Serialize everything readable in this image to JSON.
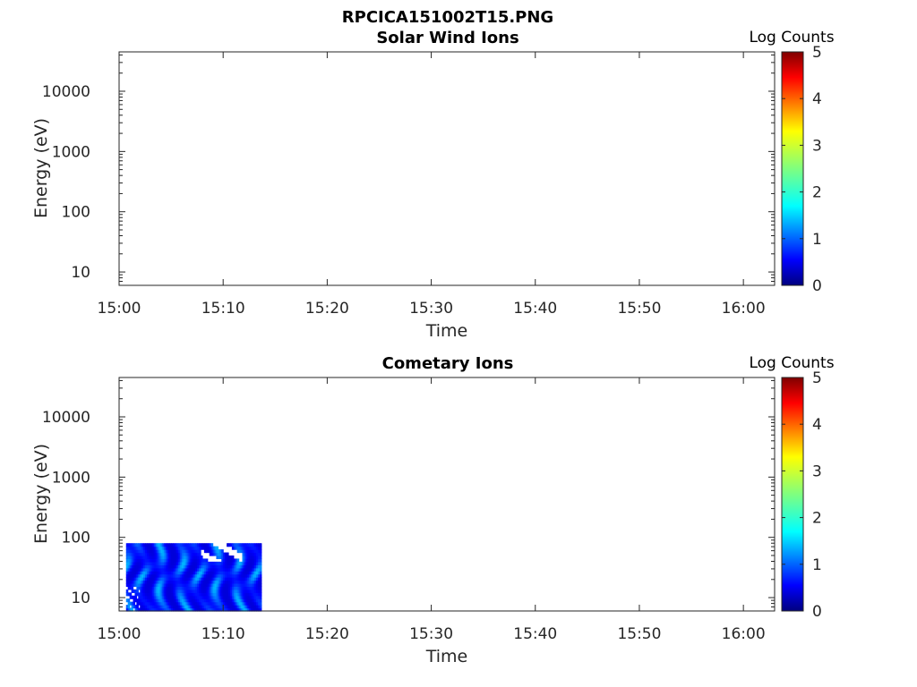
{
  "figure": {
    "title": "RPCICA151002T15.PNG"
  },
  "chart_data": [
    {
      "type": "heatmap",
      "title": "Solar Wind Ions",
      "xlabel": "Time",
      "ylabel": "Energy (eV)",
      "x_ticks": [
        "15:00",
        "15:10",
        "15:20",
        "15:30",
        "15:40",
        "15:50",
        "16:00"
      ],
      "y_ticks": [
        "10",
        "100",
        "1000",
        "10000"
      ],
      "y_scale": "log",
      "ylim": [
        6,
        45000
      ],
      "xlim": [
        "15:00",
        "16:03"
      ],
      "colorbar": {
        "title": "Log Counts",
        "ticks": [
          "0",
          "1",
          "2",
          "3",
          "4",
          "5"
        ],
        "range": [
          0,
          5
        ],
        "colormap": "jet"
      },
      "data_blocks": []
    },
    {
      "type": "heatmap",
      "title": "Cometary Ions",
      "xlabel": "Time",
      "ylabel": "Energy (eV)",
      "x_ticks": [
        "15:00",
        "15:10",
        "15:20",
        "15:30",
        "15:40",
        "15:50",
        "16:00"
      ],
      "y_ticks": [
        "10",
        "100",
        "1000",
        "10000"
      ],
      "y_scale": "log",
      "ylim": [
        6,
        45000
      ],
      "xlim": [
        "15:00",
        "16:03"
      ],
      "colorbar": {
        "title": "Log Counts",
        "ticks": [
          "0",
          "1",
          "2",
          "3",
          "4",
          "5"
        ],
        "range": [
          0,
          5
        ],
        "colormap": "jet"
      },
      "data_blocks": [
        {
          "time_start": "15:00:40",
          "time_end": "15:13:40",
          "energy_min": 6,
          "energy_max": 80,
          "log_counts_range": [
            0,
            2
          ]
        }
      ]
    }
  ]
}
